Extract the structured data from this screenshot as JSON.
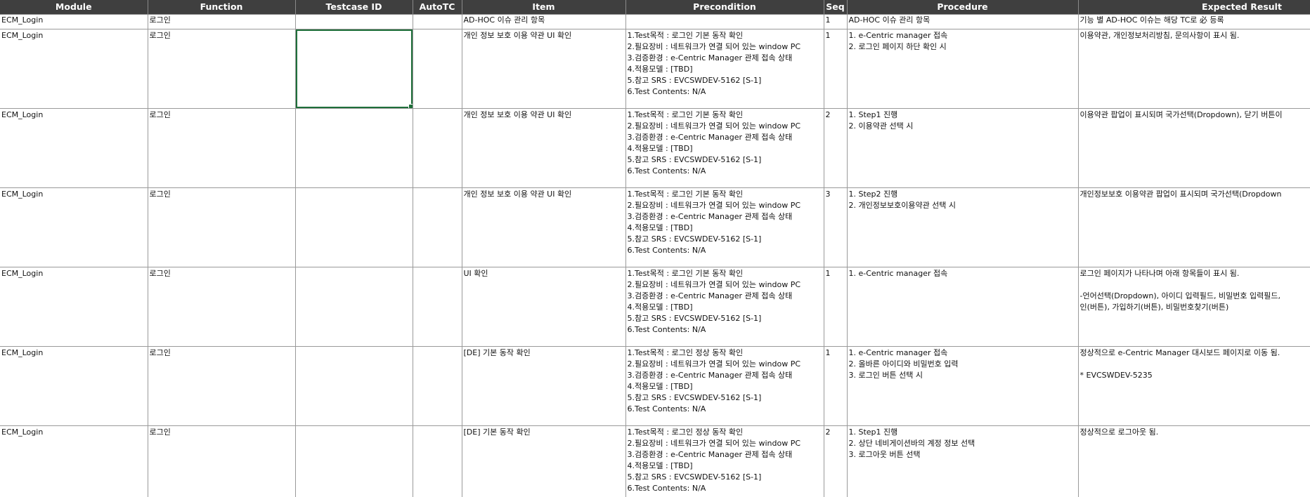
{
  "columns": [
    "Module",
    "Function",
    "Testcase ID",
    "AutoTC",
    "Item",
    "Precondition",
    "Seq",
    "Procedure",
    "Expected Result"
  ],
  "selected_cell": {
    "row": 1,
    "column": "Testcase ID"
  },
  "rows": [
    {
      "module": "ECM_Login",
      "function": "로그인",
      "testcase_id": "",
      "autotc": "",
      "item": "AD-HOC 이슈 관리 항목",
      "precondition": "",
      "seq": "1",
      "procedure": "AD-HOC 이슈 관리 항목",
      "expected": "기능 별 AD-HOC 이슈는 해당 TC로 必 등록"
    },
    {
      "module": "ECM_Login",
      "function": "로그인",
      "testcase_id": "",
      "autotc": "",
      "item": "개인 정보 보호 이용 약관 UI 확인",
      "precondition": "1.Test목적 : 로그인 기본 동작 확인\n2.필요장비 : 네트워크가 연결 되어 있는 window PC\n3.검증환경 : e-Centric Manager 관제 접속 상태\n4.적용모델 : [TBD]\n5.참고 SRS : EVCSWDEV-5162 [S-1]\n6.Test Contents: N/A",
      "seq": "1",
      "procedure": "1. e-Centric manager 접속\n2. 로그인 페이지 하단 확인 시",
      "expected": "이용약관, 개인정보처리방침, 문의사항이 표시 됨."
    },
    {
      "module": "ECM_Login",
      "function": "로그인",
      "testcase_id": "",
      "autotc": "",
      "item": "개인 정보 보호 이용 약관 UI 확인",
      "precondition": "1.Test목적 : 로그인 기본 동작 확인\n2.필요장비 : 네트워크가 연결 되어 있는 window PC\n3.검증환경 : e-Centric Manager 관제 접속 상태\n4.적용모델 : [TBD]\n5.참고 SRS : EVCSWDEV-5162 [S-1]\n6.Test Contents: N/A",
      "seq": "2",
      "procedure": "1. Step1 진행\n2. 이용약관 선택 시",
      "expected": "이용약관 팝업이 표시되며 국가선택(Dropdown), 닫기 버튼이"
    },
    {
      "module": "ECM_Login",
      "function": "로그인",
      "testcase_id": "",
      "autotc": "",
      "item": "개인 정보 보호 이용 약관 UI 확인",
      "precondition": "1.Test목적 : 로그인 기본 동작 확인\n2.필요장비 : 네트워크가 연결 되어 있는 window PC\n3.검증환경 : e-Centric Manager 관제 접속 상태\n4.적용모델 : [TBD]\n5.참고 SRS : EVCSWDEV-5162 [S-1]\n6.Test Contents: N/A",
      "seq": "3",
      "procedure": "1. Step2 진행\n2. 개인정보보호이용약관 선택 시",
      "expected": "개인정보보호 이용약관 팝업이 표시되며 국가선택(Dropdown"
    },
    {
      "module": "ECM_Login",
      "function": "로그인",
      "testcase_id": "",
      "autotc": "",
      "item": "UI 확인",
      "precondition": "1.Test목적 : 로그인 기본 동작 확인\n2.필요장비 : 네트워크가 연결 되어 있는 window PC\n3.검증환경 : e-Centric Manager 관제 접속 상태\n4.적용모델 : [TBD]\n5.참고 SRS : EVCSWDEV-5162 [S-1]\n6.Test Contents: N/A",
      "seq": "1",
      "procedure": "1. e-Centric manager 접속",
      "expected": "로그인 페이지가 나타나며 아래 항목들이 표시 됨.\n\n-언어선택(Dropdown), 아이디 입력필드, 비밀번호 입력필드,\n인(버튼), 가입하기(버튼), 비밀번호찾기(버튼)"
    },
    {
      "module": "ECM_Login",
      "function": "로그인",
      "testcase_id": "",
      "autotc": "",
      "item": "[DE] 기본 동작 확인",
      "precondition": "1.Test목적 : 로그인 정상 동작 확인\n2.필요장비 : 네트워크가 연결 되어 있는 window PC\n3.검증환경 : e-Centric Manager 관제 접속 상태\n4.적용모델 : [TBD]\n5.참고 SRS : EVCSWDEV-5162 [S-1]\n6.Test Contents: N/A",
      "seq": "1",
      "procedure": "1. e-Centric manager 접속\n2. 올바른 아이디와 비밀번호 입력\n3. 로그인 버튼 선택 시",
      "expected": "정상적으로 e-Centric Manager 대시보드 페이지로 이동 됨.\n\n* EVCSWDEV-5235"
    },
    {
      "module": "ECM_Login",
      "function": "로그인",
      "testcase_id": "",
      "autotc": "",
      "item": "[DE] 기본 동작 확인",
      "precondition": "1.Test목적 : 로그인 정상 동작 확인\n2.필요장비 : 네트워크가 연결 되어 있는 window PC\n3.검증환경 : e-Centric Manager 관제 접속 상태\n4.적용모델 : [TBD]\n5.참고 SRS : EVCSWDEV-5162 [S-1]\n6.Test Contents: N/A",
      "seq": "2",
      "procedure": "1. Step1 진행\n2. 상단 네비게이션바의 계정 정보 선택\n3. 로그아웃 버튼 선택",
      "expected": "정상적으로 로그아웃 됨."
    }
  ]
}
